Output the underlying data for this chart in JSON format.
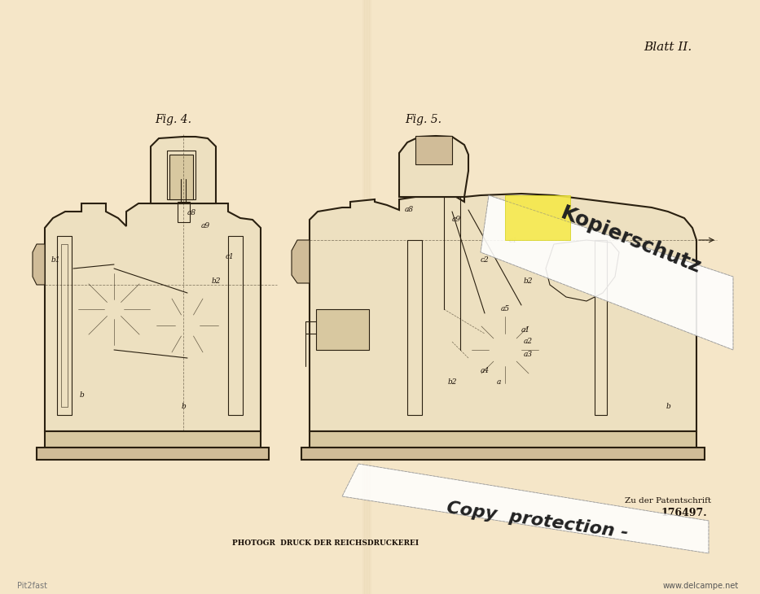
{
  "bg_color": "#f5e6c8",
  "line_color": "#2a2010",
  "text_color": "#1a1008",
  "title_text": "Blatt II.",
  "fig4_label": "Fig. 4.",
  "fig5_label": "Fig. 5.",
  "bottom_text": "PHOTOGR  DRUCK DER REICHSDRUCKEREI",
  "patent_ref1": "Zu der Patentschrift",
  "patent_ref2": "176497.",
  "watermark1": "Kopierschutz",
  "watermark2": "Copy  protection -",
  "www_text": "www.delcampe.net",
  "pit_text": "Pit2fast",
  "figsize": [
    9.33,
    7.3
  ],
  "dpi": 100
}
